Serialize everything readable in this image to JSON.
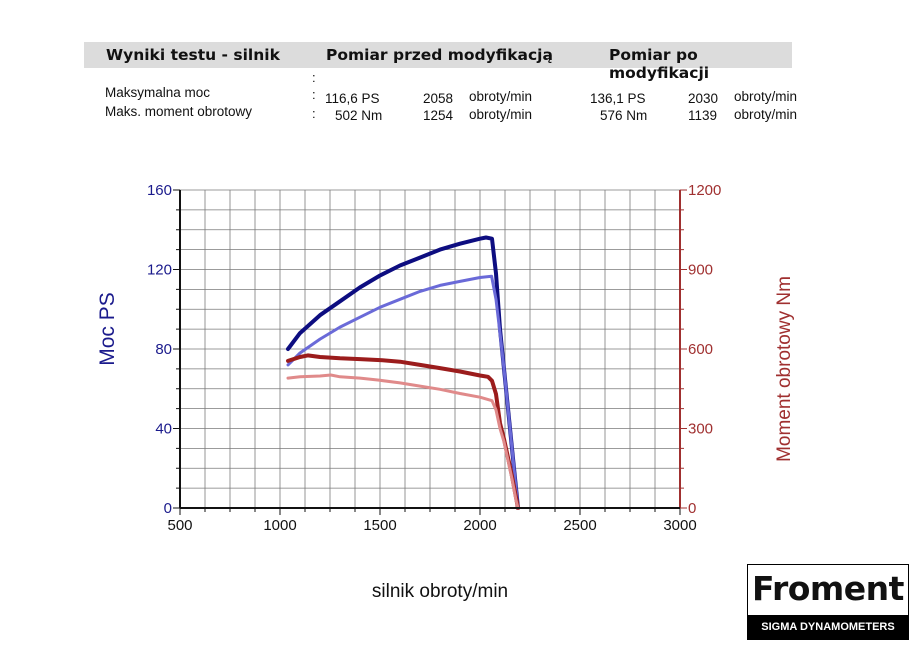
{
  "summary": {
    "col_title": "Wyniki testu - silnik",
    "col_before": "Pomiar przed modyfikacją",
    "col_after": "Pomiar po modyfikacji",
    "rows": [
      {
        "label": "Maksymalna moc",
        "before_val": "116,6 PS",
        "before_rpm": "2058",
        "before_unit": "obroty/min",
        "after_val": "136,1 PS",
        "after_rpm": "2030",
        "after_unit": "obroty/min"
      },
      {
        "label": "Maks. moment obrotowy",
        "before_val": "502 Nm",
        "before_rpm": "1254",
        "before_unit": "obroty/min",
        "after_val": "576 Nm",
        "after_rpm": "1139",
        "after_unit": "obroty/min"
      }
    ]
  },
  "chart_data": {
    "type": "line",
    "xlabel": "silnik obroty/min",
    "ylabel": "Moc PS",
    "y2label": "Moment obrotowy Nm",
    "xlim": [
      500,
      3000
    ],
    "ylim": [
      0,
      160
    ],
    "y2lim": [
      0,
      1200
    ],
    "xticks": [
      "500",
      "1000",
      "1500",
      "2000",
      "2500",
      "3000"
    ],
    "yticks": [
      "0",
      "40",
      "80",
      "120",
      "160"
    ],
    "y2ticks": [
      "0",
      "300",
      "600",
      "900",
      "1200"
    ],
    "grid": true,
    "colors": {
      "axis_left": "#1a1a8c",
      "axis_right": "#a03030",
      "power_after": "#0d0d80",
      "power_before": "#6a6ad8",
      "torque_after": "#9b1c1c",
      "torque_before": "#e08a8a"
    },
    "series": [
      {
        "axis": "left",
        "color_key": "power_after",
        "width": 4,
        "x": [
          1040,
          1100,
          1200,
          1300,
          1400,
          1500,
          1600,
          1700,
          1800,
          1900,
          2000,
          2030,
          2060,
          2080,
          2100,
          2120,
          2140,
          2160,
          2180,
          2190
        ],
        "y": [
          80,
          88,
          97,
          104,
          111,
          117,
          122,
          126,
          130,
          133,
          135.5,
          136.1,
          135.5,
          118,
          90,
          70,
          50,
          30,
          10,
          0
        ]
      },
      {
        "axis": "left",
        "color_key": "power_before",
        "width": 3,
        "x": [
          1040,
          1100,
          1200,
          1300,
          1400,
          1500,
          1600,
          1700,
          1800,
          1900,
          2000,
          2058,
          2080,
          2100,
          2120,
          2140,
          2160,
          2180,
          2190
        ],
        "y": [
          72,
          78,
          85,
          91,
          96,
          101,
          105,
          109,
          112,
          114,
          116,
          116.6,
          105,
          88,
          70,
          50,
          30,
          10,
          0
        ]
      },
      {
        "axis": "right",
        "color_key": "torque_after",
        "width": 4,
        "x": [
          1040,
          1100,
          1139,
          1200,
          1300,
          1400,
          1500,
          1600,
          1700,
          1800,
          1900,
          2000,
          2040,
          2060,
          2080,
          2100,
          2120,
          2140,
          2160,
          2180,
          2190
        ],
        "y": [
          555,
          570,
          576,
          570,
          565,
          562,
          558,
          552,
          540,
          528,
          515,
          500,
          495,
          480,
          430,
          320,
          260,
          190,
          120,
          40,
          0
        ]
      },
      {
        "axis": "right",
        "color_key": "torque_before",
        "width": 3,
        "x": [
          1040,
          1100,
          1200,
          1254,
          1300,
          1400,
          1500,
          1600,
          1700,
          1800,
          1900,
          2000,
          2060,
          2080,
          2100,
          2120,
          2140,
          2160,
          2180,
          2190
        ],
        "y": [
          490,
          495,
          498,
          502,
          495,
          490,
          482,
          472,
          460,
          448,
          432,
          418,
          405,
          370,
          300,
          250,
          180,
          110,
          30,
          0
        ]
      }
    ]
  },
  "logo": {
    "name": "Froment",
    "tagline": "SIGMA DYNAMOMETERS"
  }
}
